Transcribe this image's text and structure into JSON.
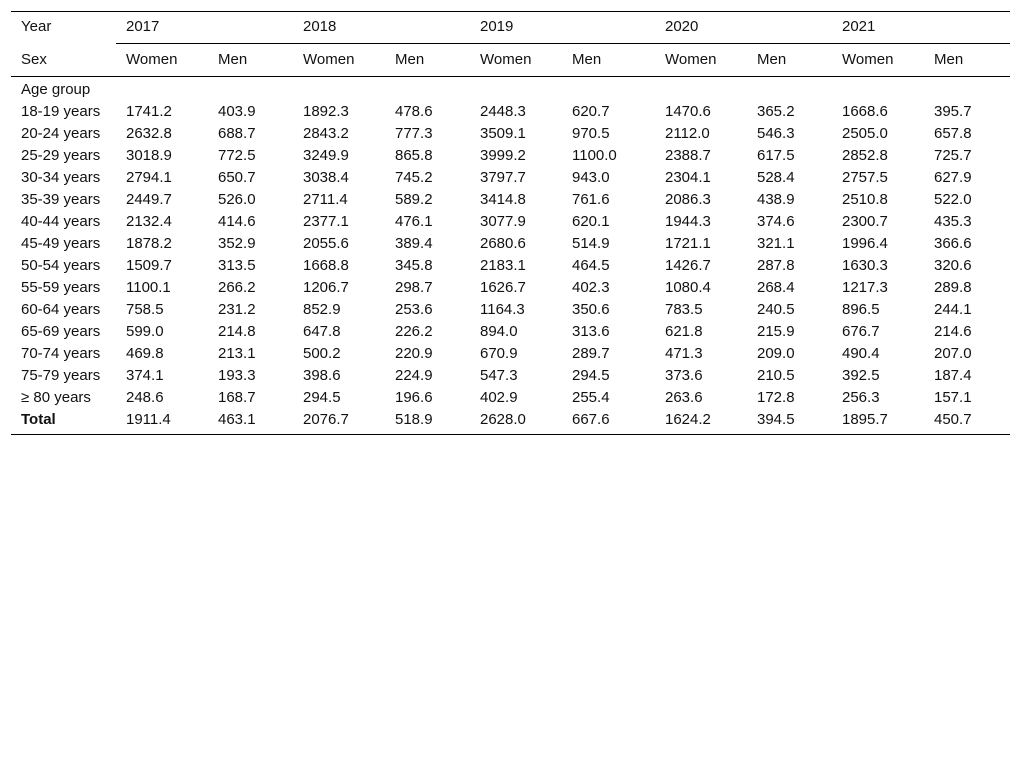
{
  "header": {
    "year_label": "Year",
    "sex_label": "Sex",
    "years": [
      "2017",
      "2018",
      "2019",
      "2020",
      "2021"
    ],
    "sexes": [
      "Women",
      "Men"
    ]
  },
  "body": {
    "group_label": "Age group",
    "rows": [
      {
        "label": "18-19 years",
        "values": [
          "1741.2",
          "403.9",
          "1892.3",
          "478.6",
          "2448.3",
          "620.7",
          "1470.6",
          "365.2",
          "1668.6",
          "395.7"
        ]
      },
      {
        "label": "20-24 years",
        "values": [
          "2632.8",
          "688.7",
          "2843.2",
          "777.3",
          "3509.1",
          "970.5",
          "2112.0",
          "546.3",
          "2505.0",
          "657.8"
        ]
      },
      {
        "label": "25-29 years",
        "values": [
          "3018.9",
          "772.5",
          "3249.9",
          "865.8",
          "3999.2",
          "1100.0",
          "2388.7",
          "617.5",
          "2852.8",
          "725.7"
        ]
      },
      {
        "label": "30-34 years",
        "values": [
          "2794.1",
          "650.7",
          "3038.4",
          "745.2",
          "3797.7",
          "943.0",
          "2304.1",
          "528.4",
          "2757.5",
          "627.9"
        ]
      },
      {
        "label": "35-39 years",
        "values": [
          "2449.7",
          "526.0",
          "2711.4",
          "589.2",
          "3414.8",
          "761.6",
          "2086.3",
          "438.9",
          "2510.8",
          "522.0"
        ]
      },
      {
        "label": "40-44 years",
        "values": [
          "2132.4",
          "414.6",
          "2377.1",
          "476.1",
          "3077.9",
          "620.1",
          "1944.3",
          "374.6",
          "2300.7",
          "435.3"
        ]
      },
      {
        "label": "45-49 years",
        "values": [
          "1878.2",
          "352.9",
          "2055.6",
          "389.4",
          "2680.6",
          "514.9",
          "1721.1",
          "321.1",
          "1996.4",
          "366.6"
        ]
      },
      {
        "label": "50-54 years",
        "values": [
          "1509.7",
          "313.5",
          "1668.8",
          "345.8",
          "2183.1",
          "464.5",
          "1426.7",
          "287.8",
          "1630.3",
          "320.6"
        ]
      },
      {
        "label": "55-59 years",
        "values": [
          "1100.1",
          "266.2",
          "1206.7",
          "298.7",
          "1626.7",
          "402.3",
          "1080.4",
          "268.4",
          "1217.3",
          "289.8"
        ]
      },
      {
        "label": "60-64 years",
        "values": [
          "758.5",
          "231.2",
          "852.9",
          "253.6",
          "1164.3",
          "350.6",
          "783.5",
          "240.5",
          "896.5",
          "244.1"
        ]
      },
      {
        "label": "65-69 years",
        "values": [
          "599.0",
          "214.8",
          "647.8",
          "226.2",
          "894.0",
          "313.6",
          "621.8",
          "215.9",
          "676.7",
          "214.6"
        ]
      },
      {
        "label": "70-74 years",
        "values": [
          "469.8",
          "213.1",
          "500.2",
          "220.9",
          "670.9",
          "289.7",
          "471.3",
          "209.0",
          "490.4",
          "207.0"
        ]
      },
      {
        "label": "75-79 years",
        "values": [
          "374.1",
          "193.3",
          "398.6",
          "224.9",
          "547.3",
          "294.5",
          "373.6",
          "210.5",
          "392.5",
          "187.4"
        ]
      },
      {
        "label": "≥ 80 years",
        "values": [
          "248.6",
          "168.7",
          "294.5",
          "196.6",
          "402.9",
          "255.4",
          "263.6",
          "172.8",
          "256.3",
          "157.1"
        ]
      }
    ],
    "total": {
      "label": "Total",
      "values": [
        "1911.4",
        "463.1",
        "2076.7",
        "518.9",
        "2628.0",
        "667.6",
        "1624.2",
        "394.5",
        "1895.7",
        "450.7"
      ]
    }
  }
}
